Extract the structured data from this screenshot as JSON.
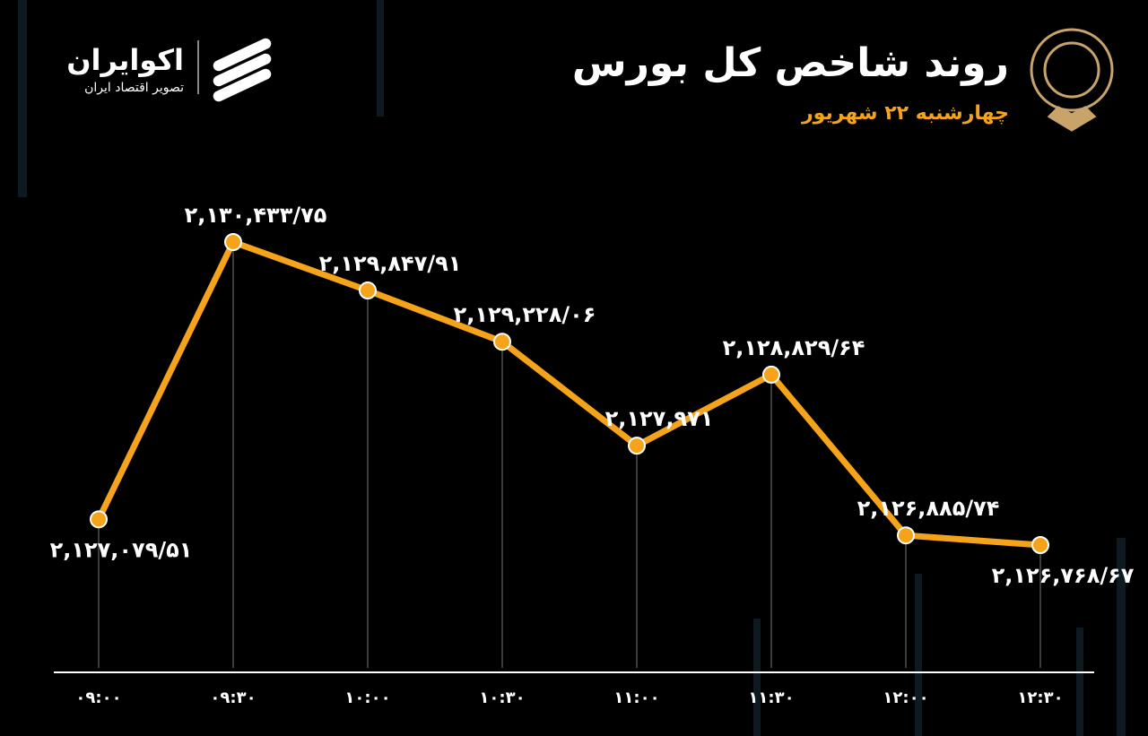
{
  "logo": {
    "name": "اکوایران",
    "tagline": "تصویر اقتصاد ایران"
  },
  "chart_data": {
    "type": "line",
    "title": "روند شاخص کل بورس",
    "subtitle": "چهارشنبه ۲۲ شهریور",
    "categories": [
      "۰۹:۰۰",
      "۰۹:۳۰",
      "۱۰:۰۰",
      "۱۰:۳۰",
      "۱۱:۰۰",
      "۱۱:۳۰",
      "۱۲:۰۰",
      "۱۲:۳۰"
    ],
    "values": [
      2127079.51,
      2130433.75,
      2129847.91,
      2129228.06,
      2127971,
      2128829.64,
      2126885.74,
      2126768.67
    ],
    "value_labels": [
      "۲,۱۲۷,۰۷۹/۵۱",
      "۲,۱۳۰,۴۳۳/۷۵",
      "۲,۱۲۹,۸۴۷/۹۱",
      "۲,۱۲۹,۲۲۸/۰۶",
      "۲,۱۲۷,۹۷۱",
      "۲,۱۲۸,۸۲۹/۶۴",
      "۲,۱۲۶,۸۸۵/۷۴",
      "۲,۱۲۶,۷۶۸/۶۷"
    ],
    "color": "#f5a31a"
  }
}
